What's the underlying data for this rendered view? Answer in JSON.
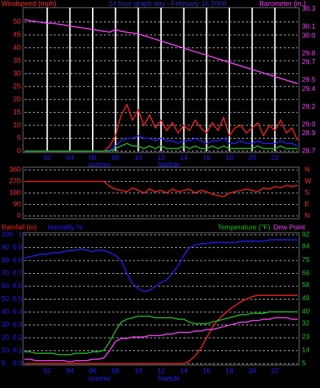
{
  "chart_data": [
    {
      "type": "line",
      "title": "24 hour graph day - February 16 2008",
      "y_label": "Windspeed (mph)",
      "y2_label": "Barometer (in.)",
      "x": [
        0,
        0.5,
        1,
        1.5,
        2,
        2.5,
        3,
        3.5,
        4,
        4.5,
        5,
        5.5,
        6,
        6.5,
        7,
        7.5,
        8,
        8.5,
        9,
        9.5,
        10,
        10.5,
        11,
        11.5,
        12,
        12.5,
        13,
        13.5,
        14,
        14.5,
        15,
        15.5,
        16,
        16.5,
        17,
        17.5,
        18,
        18.5,
        19,
        19.5,
        20,
        20.5,
        21,
        21.5,
        22,
        22.5,
        23,
        23.5,
        24
      ],
      "xlim": [
        0,
        24
      ],
      "xticks": [
        {
          "value": 2,
          "label": "02"
        },
        {
          "value": 4,
          "label": "04"
        },
        {
          "value": 6,
          "label": "06"
        },
        {
          "value": 8,
          "label": "08"
        },
        10,
        12,
        14,
        16,
        18,
        20,
        22
      ],
      "annotations": [
        {
          "text": "sunrise",
          "x": 6.6
        },
        {
          "text": "lowtide",
          "x": 12.7
        }
      ],
      "ylim": [
        0,
        55
      ],
      "yticks": [
        0,
        5,
        10,
        15,
        20,
        25,
        30,
        35,
        40,
        45,
        50
      ],
      "y2lim": [
        28.7,
        30.3
      ],
      "y2ticks": [
        30.3,
        30.1,
        {
          "value": 30.0,
          "label": "30.0"
        },
        29.8,
        29.7,
        29.5,
        29.4,
        29.2,
        {
          "value": 29.0,
          "label": "29.0"
        },
        28.9,
        28.7
      ],
      "grid": true,
      "xgrid": true,
      "series": [
        {
          "color": "#ff2020",
          "values": [
            0,
            0,
            0,
            0,
            0,
            0,
            0,
            0,
            0,
            0,
            0,
            0,
            0,
            0,
            0,
            2,
            6,
            14,
            18,
            12,
            16,
            10,
            14,
            9,
            12,
            8,
            11,
            7,
            10,
            8,
            12,
            9,
            7,
            11,
            8,
            13,
            6,
            9,
            10,
            7,
            9,
            11,
            6,
            10,
            8,
            12,
            7,
            9,
            4
          ]
        },
        {
          "color": "#2020ff",
          "values": [
            0,
            0,
            0,
            0,
            0,
            0,
            0,
            0,
            0,
            0,
            0,
            0,
            0,
            0,
            0,
            0.5,
            2,
            4,
            5,
            5,
            6,
            5,
            5,
            4,
            5,
            4,
            4,
            3,
            4,
            4,
            5,
            4,
            3,
            4,
            4,
            5,
            3,
            3,
            4,
            3,
            3,
            4,
            3,
            3,
            3,
            4,
            3,
            3,
            2
          ]
        },
        {
          "color": "#20c020",
          "values": [
            0,
            0,
            0,
            0,
            0,
            0,
            0,
            0,
            0,
            0,
            0,
            0,
            0,
            0,
            0,
            0,
            1,
            2,
            3,
            2,
            2,
            1,
            2,
            1,
            2,
            1,
            1,
            1,
            2,
            1,
            2,
            1,
            1,
            2,
            1,
            2,
            1,
            1,
            1,
            1,
            1,
            2,
            1,
            1,
            1,
            2,
            1,
            1,
            1
          ]
        },
        {
          "color": "#ff40ff",
          "axis": "y2",
          "values": [
            30.18,
            30.17,
            30.16,
            30.15,
            30.14,
            30.14,
            30.13,
            30.12,
            30.11,
            30.1,
            30.09,
            30.08,
            30.07,
            30.06,
            30.05,
            30.04,
            30.07,
            30.05,
            30.04,
            30.03,
            30.02,
            30.0,
            29.98,
            29.96,
            29.94,
            29.92,
            29.9,
            29.88,
            29.86,
            29.84,
            29.82,
            29.8,
            29.78,
            29.76,
            29.74,
            29.72,
            29.7,
            29.68,
            29.66,
            29.64,
            29.62,
            29.6,
            29.58,
            29.56,
            29.54,
            29.52,
            29.5,
            29.48,
            29.46
          ]
        }
      ]
    },
    {
      "type": "line",
      "x": [
        0,
        0.5,
        1,
        1.5,
        2,
        2.5,
        3,
        3.5,
        4,
        4.5,
        5,
        5.5,
        6,
        6.5,
        7,
        7.5,
        8,
        8.5,
        9,
        9.5,
        10,
        10.5,
        11,
        11.5,
        12,
        12.5,
        13,
        13.5,
        14,
        14.5,
        15,
        15.5,
        16,
        16.5,
        17,
        17.5,
        18,
        18.5,
        19,
        19.5,
        20,
        20.5,
        21,
        21.5,
        22,
        22.5,
        23,
        23.5,
        24
      ],
      "xlim": [
        0,
        24
      ],
      "ylim": [
        0,
        360
      ],
      "yticks": [
        360,
        270,
        180,
        90,
        0
      ],
      "y2lim": [
        0,
        360
      ],
      "y2ticks": [
        {
          "value": 360,
          "label": "N"
        },
        {
          "value": 270,
          "label": "W"
        },
        {
          "value": 180,
          "label": "S"
        },
        {
          "value": 90,
          "label": "E"
        },
        {
          "value": 0,
          "label": "N"
        }
      ],
      "grid": true,
      "series": [
        {
          "color": "#ff2020",
          "values": [
            270,
            270,
            270,
            270,
            270,
            270,
            270,
            270,
            270,
            270,
            270,
            270,
            270,
            270,
            270,
            230,
            210,
            200,
            190,
            220,
            200,
            180,
            210,
            190,
            200,
            180,
            210,
            190,
            200,
            210,
            180,
            200,
            190,
            170,
            160,
            150,
            180,
            190,
            200,
            210,
            200,
            190,
            220,
            210,
            230,
            220,
            240,
            230,
            240
          ]
        }
      ]
    },
    {
      "type": "line",
      "x": [
        0,
        0.5,
        1,
        1.5,
        2,
        2.5,
        3,
        3.5,
        4,
        4.5,
        5,
        5.5,
        6,
        6.5,
        7,
        7.5,
        8,
        8.5,
        9,
        9.5,
        10,
        10.5,
        11,
        11.5,
        12,
        12.5,
        13,
        13.5,
        14,
        14.5,
        15,
        15.5,
        16,
        16.5,
        17,
        17.5,
        18,
        18.5,
        19,
        19.5,
        20,
        20.5,
        21,
        21.5,
        22,
        22.5,
        23,
        23.5,
        24
      ],
      "xlim": [
        0,
        24
      ],
      "xticks": [
        {
          "value": 2,
          "label": "02"
        },
        {
          "value": 4,
          "label": "04"
        },
        {
          "value": 6,
          "label": "06"
        },
        {
          "value": 8,
          "label": "08"
        },
        10,
        12,
        14,
        16,
        18,
        20,
        22
      ],
      "annotations": [
        {
          "text": "sunrise",
          "x": 6.6
        },
        {
          "text": "lowtide",
          "x": 12.7
        }
      ],
      "ylim": [
        0,
        100
      ],
      "yticks": [
        0,
        10,
        20,
        30,
        40,
        50,
        60,
        70,
        80,
        90,
        100
      ],
      "y2lim": [
        5,
        92
      ],
      "y2ticks": [
        92,
        84,
        75,
        66,
        58,
        49,
        40,
        32,
        23,
        14,
        5
      ],
      "y3lim": [
        0,
        1
      ],
      "y3ticks": [
        {
          "value": 0,
          "label": "0.0"
        },
        0.1,
        0.2,
        0.3,
        0.4,
        0.5,
        0.6,
        0.7,
        0.8,
        0.9,
        1
      ],
      "grid": true,
      "series": [
        {
          "name": "Rainfall (in)",
          "color": "#ff2020",
          "axis": "y3",
          "values": [
            0,
            0,
            0,
            0,
            0,
            0,
            0,
            0,
            0,
            0,
            0,
            0,
            0,
            0,
            0,
            0,
            0,
            0,
            0,
            0,
            0,
            0,
            0,
            0,
            0,
            0,
            0,
            0,
            0,
            0.02,
            0.06,
            0.12,
            0.2,
            0.28,
            0.34,
            0.38,
            0.42,
            0.45,
            0.48,
            0.5,
            0.52,
            0.53,
            0.53,
            0.53,
            0.53,
            0.53,
            0.53,
            0.53,
            0.53
          ]
        },
        {
          "name": "Humidity %",
          "color": "#2020ff",
          "values": [
            82,
            83,
            84,
            85,
            85,
            86,
            86,
            87,
            88,
            88,
            89,
            88,
            87,
            88,
            88,
            86,
            84,
            80,
            70,
            62,
            58,
            56,
            57,
            60,
            63,
            65,
            70,
            76,
            84,
            90,
            92,
            93,
            93,
            94,
            94,
            94,
            94,
            94,
            95,
            95,
            95,
            95,
            95,
            96,
            96,
            96,
            96,
            96,
            96
          ]
        },
        {
          "name": "Temperature (°F)",
          "color": "#20c020",
          "axis": "y2",
          "values": [
            13,
            13,
            12,
            12,
            12,
            12,
            11,
            11,
            11,
            12,
            12,
            12,
            13,
            13,
            14,
            20,
            27,
            33,
            35,
            36,
            37,
            37,
            37,
            36,
            36,
            36,
            36,
            35,
            35,
            33,
            32,
            32,
            32,
            33,
            34,
            35,
            36,
            37,
            38,
            38,
            39,
            39,
            39,
            40,
            40,
            40,
            40,
            40,
            40
          ]
        },
        {
          "name": "Dew Point",
          "color": "#ff40ff",
          "axis": "y2",
          "values": [
            8,
            8,
            7,
            7,
            7,
            7,
            7,
            7,
            6,
            7,
            7,
            7,
            8,
            8,
            9,
            14,
            20,
            22,
            22,
            23,
            23,
            23,
            24,
            24,
            24,
            25,
            25,
            26,
            26,
            26,
            27,
            27,
            28,
            28,
            29,
            30,
            31,
            32,
            33,
            33,
            34,
            34,
            35,
            35,
            36,
            36,
            36,
            35,
            35
          ]
        }
      ]
    }
  ]
}
